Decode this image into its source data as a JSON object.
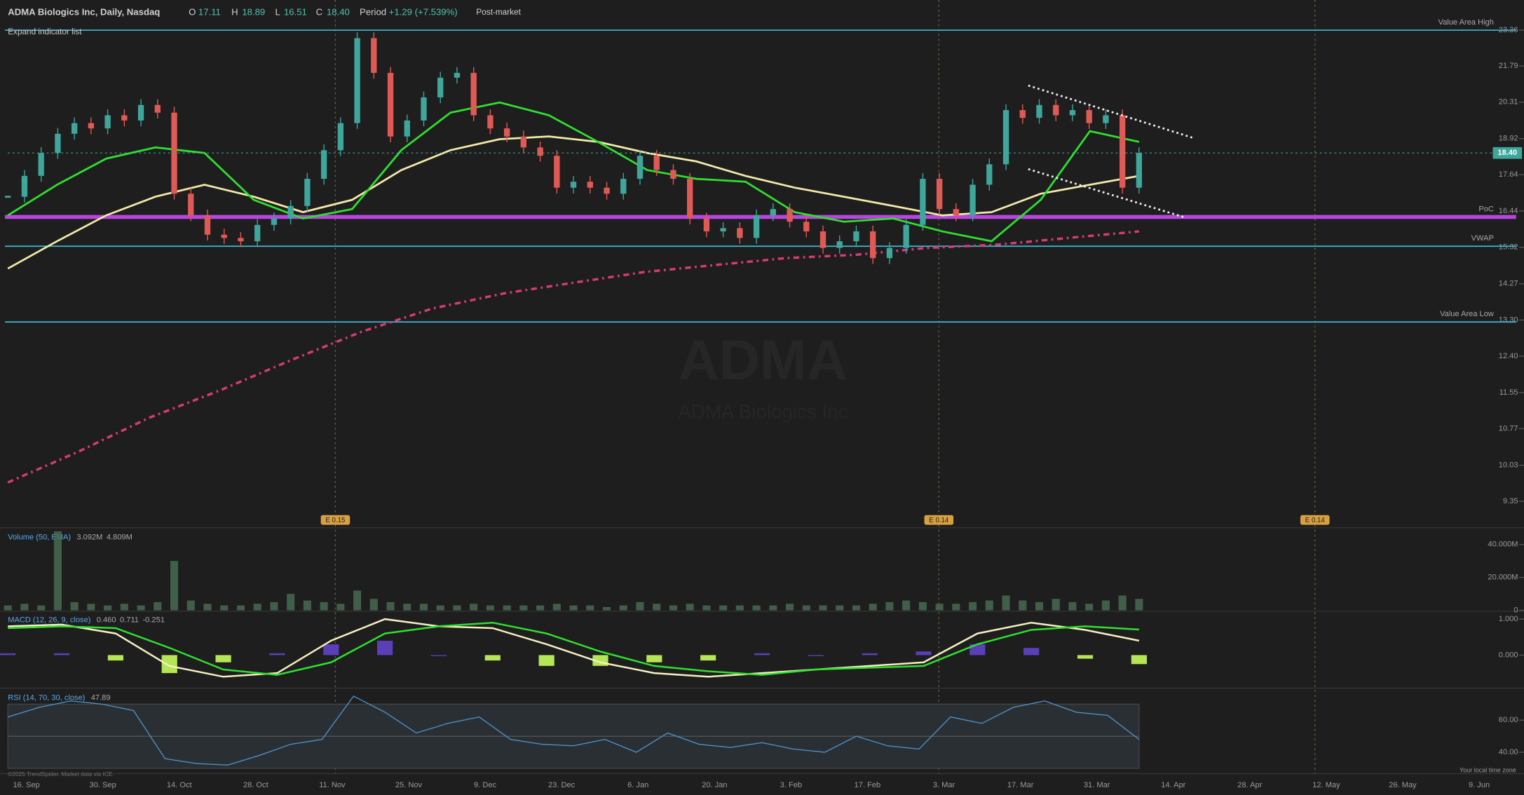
{
  "header": {
    "title": "ADMA Biologics Inc, Daily, Nasdaq",
    "o_label": "O",
    "open": "17.11",
    "h_label": "H",
    "high": "18.89",
    "l_label": "L",
    "low": "16.51",
    "c_label": "C",
    "close": "18.40",
    "period_label": "Period",
    "period_change": "+1.29 (+7.539%)",
    "session": "Post-market",
    "expand": "Expand indicator list"
  },
  "watermark": {
    "symbol": "ADMA",
    "name": "ADMA Biologics Inc"
  },
  "annotations": [
    "E 0.15",
    "E 0.14",
    "E 0.14"
  ],
  "x_axis_labels": [
    "16. Sep",
    "30. Sep",
    "14. Oct",
    "28. Oct",
    "11. Nov",
    "25. Nov",
    "9. Dec",
    "23. Dec",
    "6. Jan",
    "20. Jan",
    "3. Feb",
    "17. Feb",
    "3. Mar",
    "17. Mar",
    "31. Mar",
    "14. Apr",
    "28. Apr",
    "12. May",
    "26. May",
    "9. Jun"
  ],
  "footer": {
    "copyright": "©2025 TrendSpider. Market data via ICE.",
    "timezone": "Your local time zone"
  },
  "chart_data": [
    {
      "type": "candlestick",
      "log_scale": true,
      "ylim": [
        8.9,
        24.77
      ],
      "yticks": [
        23.36,
        21.79,
        20.31,
        18.92,
        17.64,
        16.44,
        15.32,
        14.27,
        {
          "value": 13.3,
          "label": "13.30"
        },
        {
          "value": 12.4,
          "label": "12.40"
        },
        11.55,
        10.77,
        10.03,
        9.35
      ],
      "up_color": "#3fa69c",
      "down_color": "#e05a55",
      "closes": [
        16.9,
        17.6,
        18.4,
        19.1,
        19.5,
        19.3,
        19.8,
        19.6,
        20.2,
        19.9,
        17.0,
        16.3,
        15.7,
        15.6,
        15.5,
        16.0,
        16.2,
        16.6,
        17.5,
        18.5,
        19.5,
        23.0,
        21.5,
        19.0,
        19.6,
        20.5,
        21.3,
        21.5,
        19.8,
        19.3,
        19.0,
        18.6,
        18.3,
        17.2,
        17.4,
        17.2,
        17.0,
        17.5,
        18.3,
        17.8,
        17.5,
        16.2,
        15.8,
        15.9,
        15.6,
        16.3,
        16.5,
        16.1,
        15.8,
        15.3,
        15.5,
        15.8,
        15.0,
        15.3,
        16.0,
        17.5,
        16.5,
        16.3,
        17.3,
        18.0,
        20.0,
        19.7,
        20.2,
        19.8,
        20.0,
        19.5,
        19.8,
        17.2,
        18.4
      ],
      "overlays": [
        {
          "color": "#d63a78",
          "dashed": true,
          "values": [
            9.7,
            10.3,
            11.0,
            11.6,
            12.3,
            13.0,
            13.6,
            14.0,
            14.3,
            14.6,
            14.8,
            15.0,
            15.1,
            15.3,
            15.4,
            15.6,
            15.8
          ]
        },
        {
          "color": "#f3e9a8",
          "dashed": false,
          "values": [
            14.7,
            15.5,
            16.3,
            16.9,
            17.3,
            16.9,
            16.4,
            16.8,
            17.8,
            18.5,
            18.9,
            19.0,
            18.8,
            18.4,
            18.1,
            17.6,
            17.2,
            16.9,
            16.6,
            16.3,
            16.4,
            17.0,
            17.3,
            17.6
          ]
        },
        {
          "color": "#2ee02e",
          "dashed": false,
          "values": [
            16.3,
            17.3,
            18.2,
            18.6,
            18.4,
            16.8,
            16.2,
            16.5,
            18.5,
            19.9,
            20.3,
            19.8,
            18.8,
            17.8,
            17.5,
            17.4,
            16.4,
            16.1,
            16.2,
            15.8,
            15.5,
            16.8,
            19.2,
            18.8
          ]
        }
      ],
      "levels": [
        {
          "label": "Value Area High",
          "value": 23.36,
          "color": "#3fb8d8"
        },
        {
          "label": "PoC",
          "value": 16.25,
          "color": "#b845e0"
        },
        {
          "label": "VWAP",
          "value": 15.35,
          "color": "#3fb8d8"
        },
        {
          "label": "Value Area Low",
          "value": 13.25,
          "color": "#3fb8d8"
        }
      ],
      "last_price": {
        "value": 18.4,
        "label": "18.40"
      }
    },
    {
      "type": "bar",
      "title": "Volume (50, EMA)",
      "legend_values": [
        "3.092M",
        "4.809M"
      ],
      "legend_colors": [
        "#5aa8e8",
        "#a8e05a"
      ],
      "ylim": [
        0,
        49
      ],
      "yticks": [
        0,
        {
          "value": 20,
          "label": "20.000M"
        },
        {
          "value": 40,
          "label": "40.000M"
        }
      ],
      "color": "#4a6e52",
      "values": [
        3,
        4,
        3,
        48,
        5,
        4,
        3,
        4,
        3,
        5,
        30,
        6,
        4,
        3,
        3,
        4,
        5,
        10,
        6,
        5,
        4,
        12,
        7,
        5,
        4,
        4,
        3,
        3,
        4,
        3,
        3,
        3,
        3,
        4,
        3,
        3,
        2,
        3,
        5,
        4,
        3,
        4,
        3,
        3,
        3,
        3,
        3,
        4,
        3,
        3,
        3,
        3,
        4,
        5,
        6,
        5,
        4,
        4,
        5,
        6,
        9,
        6,
        5,
        7,
        5,
        4,
        6,
        9,
        7
      ]
    },
    {
      "type": "line",
      "title": "MACD (12, 26, 9, close)",
      "legend_values": [
        "0.460",
        "0.711",
        "-0.251"
      ],
      "legend_colors": [
        "#f5f0c0",
        "#2ee02e",
        "#b5e655"
      ],
      "ylim": [
        -0.89,
        1.19
      ],
      "yticks": [
        {
          "value": 1,
          "label": "1.000"
        },
        {
          "value": 0,
          "label": "0.000"
        }
      ],
      "histogram": {
        "pos_color": "#5b3fb8",
        "neg_color": "#b5e655",
        "values": [
          0.05,
          0.05,
          -0.15,
          -0.5,
          -0.2,
          0.05,
          0.3,
          0.4,
          0,
          -0.15,
          -0.3,
          -0.3,
          -0.2,
          -0.15,
          0.05,
          0,
          0.05,
          0.1,
          0.3,
          0.2,
          -0.1,
          -0.25
        ]
      },
      "series": [
        {
          "color": "#f5f0c0",
          "values": [
            0.8,
            0.85,
            0.6,
            -0.3,
            -0.6,
            -0.5,
            0.4,
            1.0,
            0.8,
            0.75,
            0.3,
            -0.2,
            -0.5,
            -0.6,
            -0.5,
            -0.4,
            -0.3,
            -0.2,
            0.6,
            0.9,
            0.7,
            0.4
          ]
        },
        {
          "color": "#2ee02e",
          "values": [
            0.75,
            0.8,
            0.75,
            0.2,
            -0.4,
            -0.55,
            -0.2,
            0.6,
            0.8,
            0.9,
            0.6,
            0.1,
            -0.3,
            -0.45,
            -0.55,
            -0.4,
            -0.35,
            -0.3,
            0.3,
            0.7,
            0.8,
            0.71
          ]
        }
      ]
    },
    {
      "type": "line",
      "title": "RSI (14, 70, 30, close)",
      "legend_values": [
        "47.89"
      ],
      "legend_colors": [
        "#5aa8e8"
      ],
      "ylim": [
        28.5,
        78.8
      ],
      "yticks": [
        {
          "value": 60,
          "label": "60.00"
        },
        {
          "value": 40,
          "label": "40.00"
        }
      ],
      "band": [
        30,
        70
      ],
      "midline": 50,
      "series": [
        {
          "color": "#4a90c8",
          "values": [
            62,
            68,
            72,
            70,
            66,
            36,
            33,
            32,
            38,
            45,
            48,
            75,
            65,
            52,
            58,
            62,
            48,
            45,
            44,
            48,
            40,
            52,
            45,
            43,
            46,
            42,
            40,
            50,
            44,
            42,
            62,
            58,
            68,
            72,
            65,
            63,
            48
          ]
        }
      ]
    }
  ]
}
